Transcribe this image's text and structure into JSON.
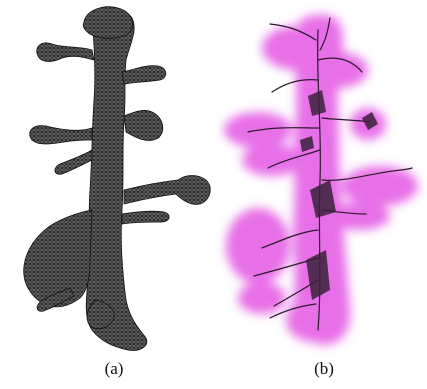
{
  "panels": [
    {
      "label": "(a)",
      "style": "wireframe-mesh",
      "color": "#1e1e1e"
    },
    {
      "label": "(b)",
      "style": "skeleton-over-volume",
      "volume_color": "#e040e0",
      "skeleton_color": "#2a1a2a"
    }
  ]
}
